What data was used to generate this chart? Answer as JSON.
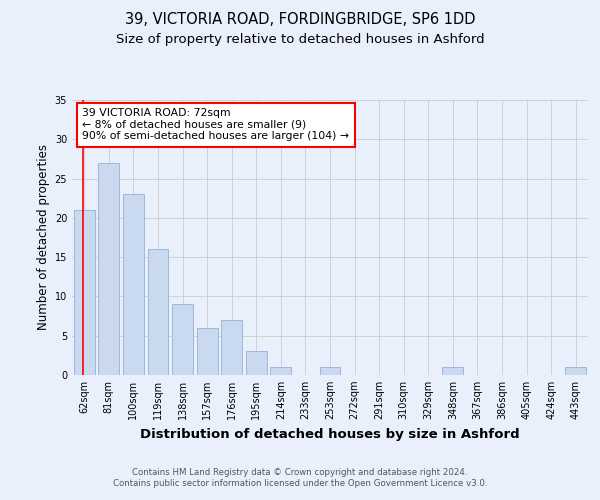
{
  "title1": "39, VICTORIA ROAD, FORDINGBRIDGE, SP6 1DD",
  "title2": "Size of property relative to detached houses in Ashford",
  "xlabel": "Distribution of detached houses by size in Ashford",
  "ylabel": "Number of detached properties",
  "categories": [
    "62sqm",
    "81sqm",
    "100sqm",
    "119sqm",
    "138sqm",
    "157sqm",
    "176sqm",
    "195sqm",
    "214sqm",
    "233sqm",
    "253sqm",
    "272sqm",
    "291sqm",
    "310sqm",
    "329sqm",
    "348sqm",
    "367sqm",
    "386sqm",
    "405sqm",
    "424sqm",
    "443sqm"
  ],
  "values": [
    21,
    27,
    23,
    16,
    9,
    6,
    7,
    3,
    1,
    0,
    1,
    0,
    0,
    0,
    0,
    1,
    0,
    0,
    0,
    0,
    1
  ],
  "bar_color": "#c9d9f0",
  "bar_edge_color": "#a0b8d8",
  "annotation_text": "39 VICTORIA ROAD: 72sqm\n← 8% of detached houses are smaller (9)\n90% of semi-detached houses are larger (104) →",
  "red_line_x": -0.07,
  "ylim": [
    0,
    35
  ],
  "yticks": [
    0,
    5,
    10,
    15,
    20,
    25,
    30,
    35
  ],
  "grid_color": "#cccccc",
  "background_color": "#eaf0fb",
  "plot_bg_color": "#eaf0fb",
  "footer_text": "Contains HM Land Registry data © Crown copyright and database right 2024.\nContains public sector information licensed under the Open Government Licence v3.0.",
  "title_fontsize": 10.5,
  "subtitle_fontsize": 9.5,
  "xlabel_fontsize": 9.5,
  "ylabel_fontsize": 8.5,
  "tick_fontsize": 7,
  "annotation_fontsize": 7.8,
  "footer_fontsize": 6.2
}
